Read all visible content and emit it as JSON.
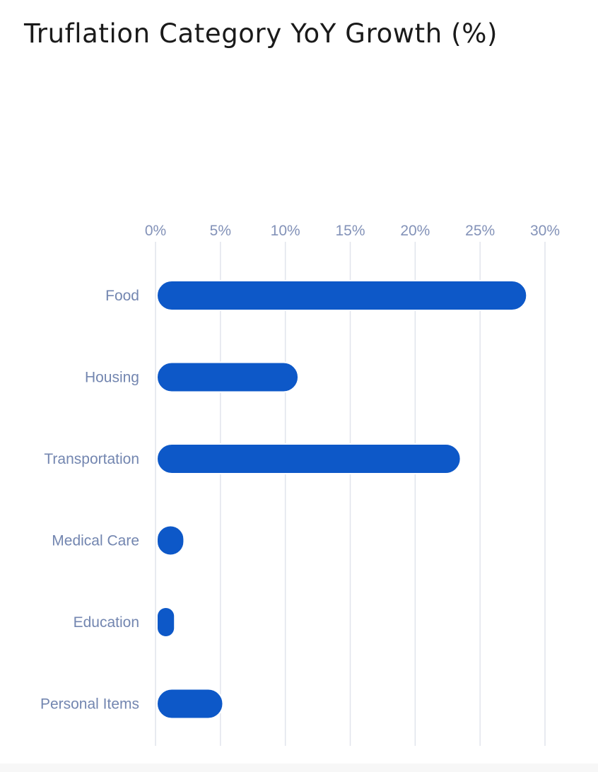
{
  "chart_data": {
    "type": "bar",
    "orientation": "horizontal",
    "title": "Truflation Category YoY Growth (%)",
    "categories": [
      "Food",
      "Housing",
      "Transportation",
      "Medical Care",
      "Education",
      "Personal Items"
    ],
    "values": [
      28.6,
      11.0,
      23.5,
      2.2,
      1.4,
      5.2
    ],
    "x_ticks": [
      "0%",
      "5%",
      "10%",
      "15%",
      "20%",
      "25%",
      "30%"
    ],
    "xlim": [
      0,
      30
    ],
    "x_axis_position": "top",
    "grid": true,
    "legend": "none",
    "bar_color": "#0d58c8",
    "grid_color": "#e1e4ec",
    "label_color": "#7386b0"
  }
}
